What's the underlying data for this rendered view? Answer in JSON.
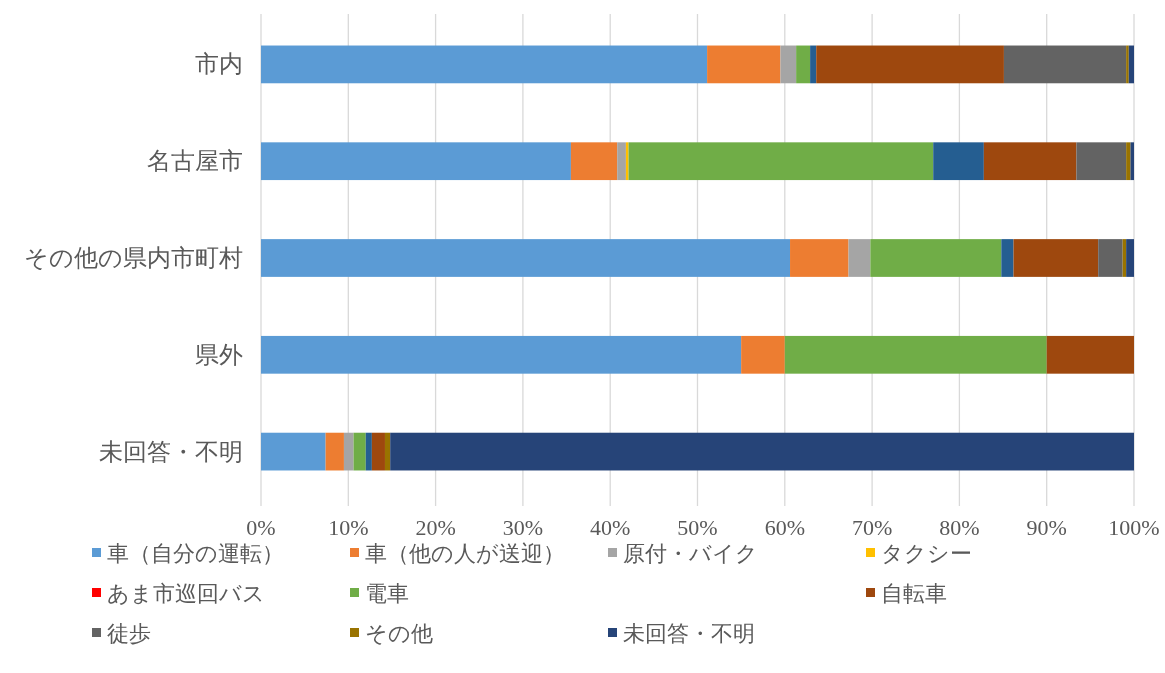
{
  "chart_data": {
    "type": "bar",
    "orientation": "horizontal",
    "stacked": true,
    "categories": [
      "市内",
      "名古屋市",
      "その他の県内市町村",
      "県外",
      "未回答・不明"
    ],
    "series": [
      {
        "name": "車（自分の運転）",
        "color": "#5b9bd5",
        "values": [
          51.1,
          35.5,
          60.6,
          55.0,
          7.4
        ]
      },
      {
        "name": "車（他の人が送迎）",
        "color": "#ed7d31",
        "values": [
          8.4,
          5.3,
          6.7,
          5.0,
          2.1
        ]
      },
      {
        "name": "原付・バイク",
        "color": "#a5a5a5",
        "values": [
          1.8,
          1.0,
          2.5,
          0,
          1.1
        ]
      },
      {
        "name": "タクシー",
        "color": "#ffc000",
        "values": [
          0,
          0.3,
          0,
          0,
          0
        ]
      },
      {
        "name": "あま市巡回バス",
        "color": "#ff0000",
        "values": [
          0,
          0,
          0,
          0,
          0
        ]
      },
      {
        "name": "電車",
        "color": "#70ad47",
        "values": [
          1.6,
          34.9,
          15.0,
          30.0,
          1.4
        ]
      },
      {
        "color": "#255e91",
        "values": [
          0.7,
          5.8,
          1.4,
          0,
          0.7
        ]
      },
      {
        "name": "自転車",
        "color": "#9e480e",
        "values": [
          21.5,
          10.6,
          9.7,
          10.0,
          1.5
        ]
      },
      {
        "name": "徒歩",
        "color": "#636363",
        "values": [
          14.0,
          5.7,
          2.8,
          0,
          0
        ]
      },
      {
        "name": "その他",
        "color": "#997300",
        "values": [
          0.3,
          0.5,
          0.4,
          0,
          0.6
        ]
      },
      {
        "name": "未回答・不明",
        "color": "#264478",
        "values": [
          0.6,
          0.4,
          0.9,
          0,
          85.2
        ]
      }
    ],
    "xlim": [
      0,
      100
    ],
    "xticks": [
      {
        "value": 0,
        "label": "0%"
      },
      {
        "value": 10,
        "label": "10%"
      },
      {
        "value": 20,
        "label": "20%"
      },
      {
        "value": 30,
        "label": "30%"
      },
      {
        "value": 40,
        "label": "40%"
      },
      {
        "value": 50,
        "label": "50%"
      },
      {
        "value": 60,
        "label": "60%"
      },
      {
        "value": 70,
        "label": "70%"
      },
      {
        "value": 80,
        "label": "80%"
      },
      {
        "value": 90,
        "label": "90%"
      },
      {
        "value": 100,
        "label": "100%"
      }
    ],
    "grid": "x",
    "legend": "bottom"
  }
}
